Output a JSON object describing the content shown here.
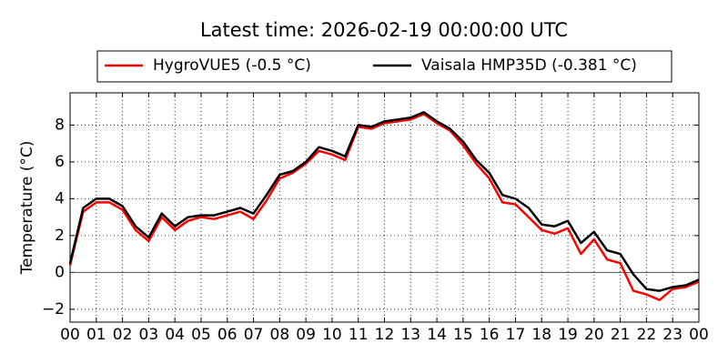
{
  "chart_data": {
    "type": "line",
    "title": "Latest time: 2026-02-19 00:00:00 UTC",
    "y_label": "Temperature (°C)",
    "x": [
      0,
      0.5,
      1,
      1.5,
      2,
      2.5,
      3,
      3.5,
      4,
      4.5,
      5,
      5.5,
      6,
      6.5,
      7,
      7.5,
      8,
      8.5,
      9,
      9.5,
      10,
      10.5,
      11,
      11.5,
      12,
      12.5,
      13,
      13.5,
      14,
      14.5,
      15,
      15.5,
      16,
      16.5,
      17,
      17.5,
      18,
      18.5,
      19,
      19.5,
      20,
      20.5,
      21,
      21.5,
      22,
      22.5,
      23,
      23.5,
      24
    ],
    "series": [
      {
        "name": "HygroVUE5 (-0.5 °C)",
        "color": "#ff0000",
        "values": [
          0.4,
          3.3,
          3.8,
          3.8,
          3.4,
          2.3,
          1.7,
          3.0,
          2.3,
          2.8,
          3.0,
          2.9,
          3.1,
          3.3,
          2.9,
          3.9,
          5.1,
          5.4,
          5.9,
          6.6,
          6.4,
          6.1,
          7.9,
          7.8,
          8.1,
          8.2,
          8.3,
          8.6,
          8.1,
          7.7,
          6.9,
          5.9,
          5.1,
          3.8,
          3.7,
          3.0,
          2.3,
          2.1,
          2.4,
          1.0,
          1.8,
          0.7,
          0.5,
          -1.0,
          -1.2,
          -1.5,
          -0.9,
          -0.8,
          -0.5
        ]
      },
      {
        "name": "Vaisala HMP35D (-0.381 °C)",
        "color": "#000000",
        "values": [
          0.5,
          3.5,
          4.0,
          4.0,
          3.6,
          2.5,
          1.9,
          3.2,
          2.5,
          3.0,
          3.1,
          3.1,
          3.3,
          3.5,
          3.2,
          4.2,
          5.3,
          5.5,
          6.0,
          6.8,
          6.6,
          6.3,
          8.0,
          7.9,
          8.2,
          8.3,
          8.4,
          8.7,
          8.2,
          7.8,
          7.1,
          6.1,
          5.4,
          4.2,
          4.0,
          3.5,
          2.6,
          2.5,
          2.8,
          1.6,
          2.2,
          1.2,
          1.0,
          -0.1,
          -0.9,
          -1.0,
          -0.8,
          -0.7,
          -0.4
        ]
      }
    ],
    "xlim": [
      0,
      24
    ],
    "xticks": [
      {
        "value": 0,
        "label": "00"
      },
      {
        "value": 1,
        "label": "01"
      },
      {
        "value": 2,
        "label": "02"
      },
      {
        "value": 3,
        "label": "03"
      },
      {
        "value": 4,
        "label": "04"
      },
      {
        "value": 5,
        "label": "05"
      },
      {
        "value": 6,
        "label": "06"
      },
      {
        "value": 7,
        "label": "07"
      },
      {
        "value": 8,
        "label": "08"
      },
      {
        "value": 9,
        "label": "09"
      },
      {
        "value": 10,
        "label": "10"
      },
      {
        "value": 11,
        "label": "11"
      },
      {
        "value": 12,
        "label": "12"
      },
      {
        "value": 13,
        "label": "13"
      },
      {
        "value": 14,
        "label": "14"
      },
      {
        "value": 15,
        "label": "15"
      },
      {
        "value": 16,
        "label": "16"
      },
      {
        "value": 17,
        "label": "17"
      },
      {
        "value": 18,
        "label": "18"
      },
      {
        "value": 19,
        "label": "19"
      },
      {
        "value": 20,
        "label": "20"
      },
      {
        "value": 21,
        "label": "21"
      },
      {
        "value": 22,
        "label": "22"
      },
      {
        "value": 23,
        "label": "23"
      },
      {
        "value": 24,
        "label": "00"
      }
    ],
    "ylim": [
      -2.7,
      9.75
    ],
    "yticks": [
      {
        "value": -2,
        "label": "−2"
      },
      0,
      2,
      4,
      6,
      8
    ],
    "grid": true
  }
}
